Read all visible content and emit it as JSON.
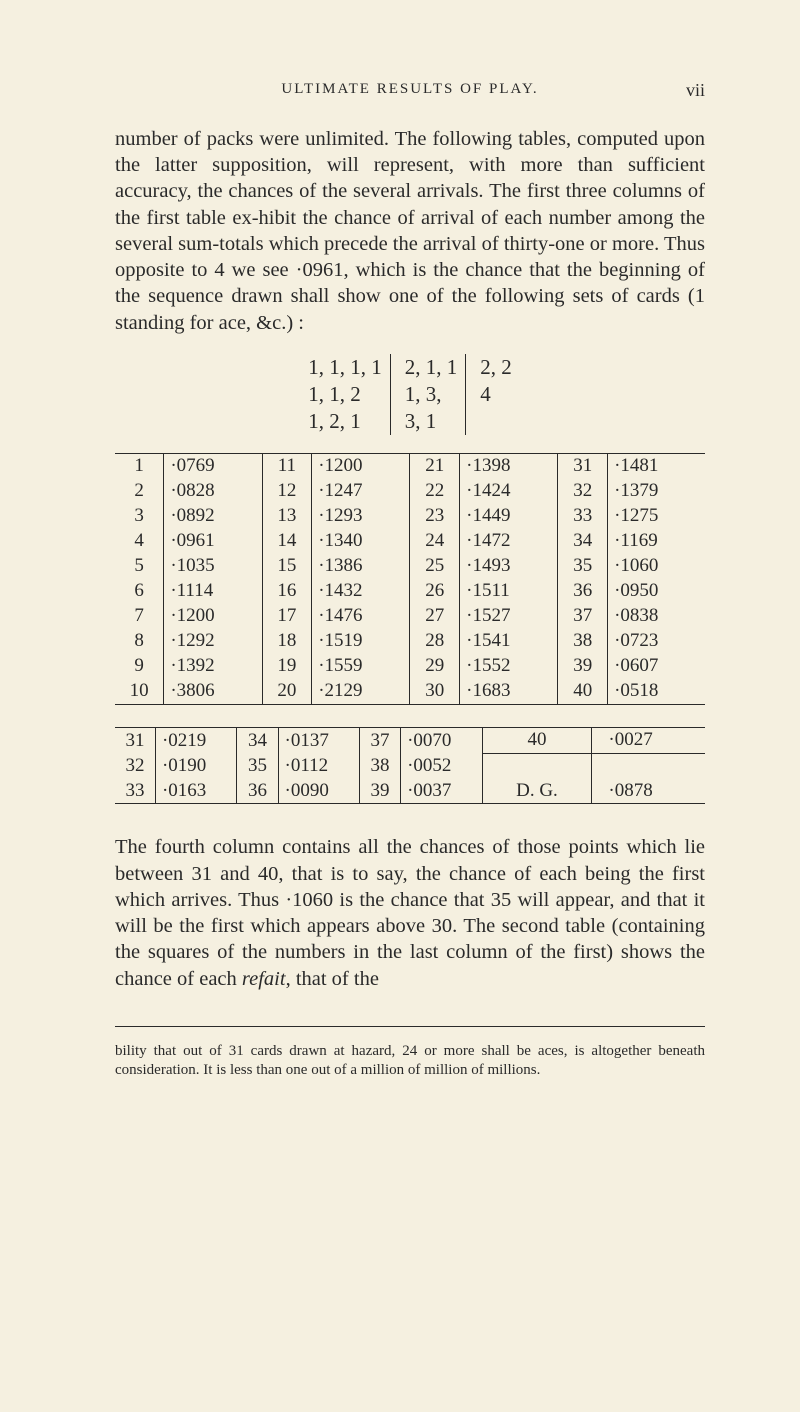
{
  "header": {
    "running_title": "ULTIMATE RESULTS OF PLAY.",
    "page_num": "vii"
  },
  "paragraph1": "number of packs were unlimited. The following tables, computed upon the latter supposition, will represent, with more than sufficient accuracy, the chances of the several arrivals. The first three columns of the first table ex-hibit the chance of arrival of each number among the several sum-totals which precede the arrival of thirty-one or more. Thus opposite to 4 we see ·0961, which is the chance that the beginning of the sequence drawn shall show one of the following sets of cards (1 standing for ace, &c.) :",
  "sequences": {
    "c1r1": "1, 1, 1, 1",
    "c2r1": "2, 1, 1",
    "c3r1": "2, 2",
    "c1r2": "1, 1, 2",
    "c2r2": "1, 3,",
    "c3r2": "4",
    "c1r3": "1, 2, 1",
    "c2r3": "3, 1"
  },
  "table1": {
    "r1": [
      "1",
      "·0769",
      "11",
      "·1200",
      "21",
      "·1398",
      "31",
      "·1481"
    ],
    "r2": [
      "2",
      "·0828",
      "12",
      "·1247",
      "22",
      "·1424",
      "32",
      "·1379"
    ],
    "r3": [
      "3",
      "·0892",
      "13",
      "·1293",
      "23",
      "·1449",
      "33",
      "·1275"
    ],
    "r4": [
      "4",
      "·0961",
      "14",
      "·1340",
      "24",
      "·1472",
      "34",
      "·1169"
    ],
    "r5": [
      "5",
      "·1035",
      "15",
      "·1386",
      "25",
      "·1493",
      "35",
      "·1060"
    ],
    "r6": [
      "6",
      "·1114",
      "16",
      "·1432",
      "26",
      "·1511",
      "36",
      "·0950"
    ],
    "r7": [
      "7",
      "·1200",
      "17",
      "·1476",
      "27",
      "·1527",
      "37",
      "·0838"
    ],
    "r8": [
      "8",
      "·1292",
      "18",
      "·1519",
      "28",
      "·1541",
      "38",
      "·0723"
    ],
    "r9": [
      "9",
      "·1392",
      "19",
      "·1559",
      "29",
      "·1552",
      "39",
      "·0607"
    ],
    "r10": [
      "10",
      "·3806",
      "20",
      "·2129",
      "30",
      "·1683",
      "40",
      "·0518"
    ]
  },
  "table2": {
    "r1": [
      "31",
      "·0219",
      "34",
      "·0137",
      "37",
      "·0070",
      "40",
      "·0027"
    ],
    "r2_left": [
      "32",
      "·0190",
      "35",
      "·0112",
      "38",
      "·0052"
    ],
    "r3_left": [
      "33",
      "·0163",
      "36",
      "·0090",
      "39",
      "·0037"
    ],
    "dg_label": "D. G.",
    "dg_val": "·0878"
  },
  "paragraph2_a": "The fourth column contains all the chances of those points which lie between 31 and 40, that is to say, the chance of each being the first which arrives. Thus ·1060 is the chance that 35 will appear, and that it will be the first which appears above 30. The second table (containing the squares of the numbers in the last column of the first) shows the chance of each ",
  "paragraph2_i": "refait",
  "paragraph2_b": ", that of the",
  "footnote": "bility that out of 31 cards drawn at hazard, 24 or more shall be aces, is altogether beneath consideration. It is less than one out of a million of million of millions."
}
